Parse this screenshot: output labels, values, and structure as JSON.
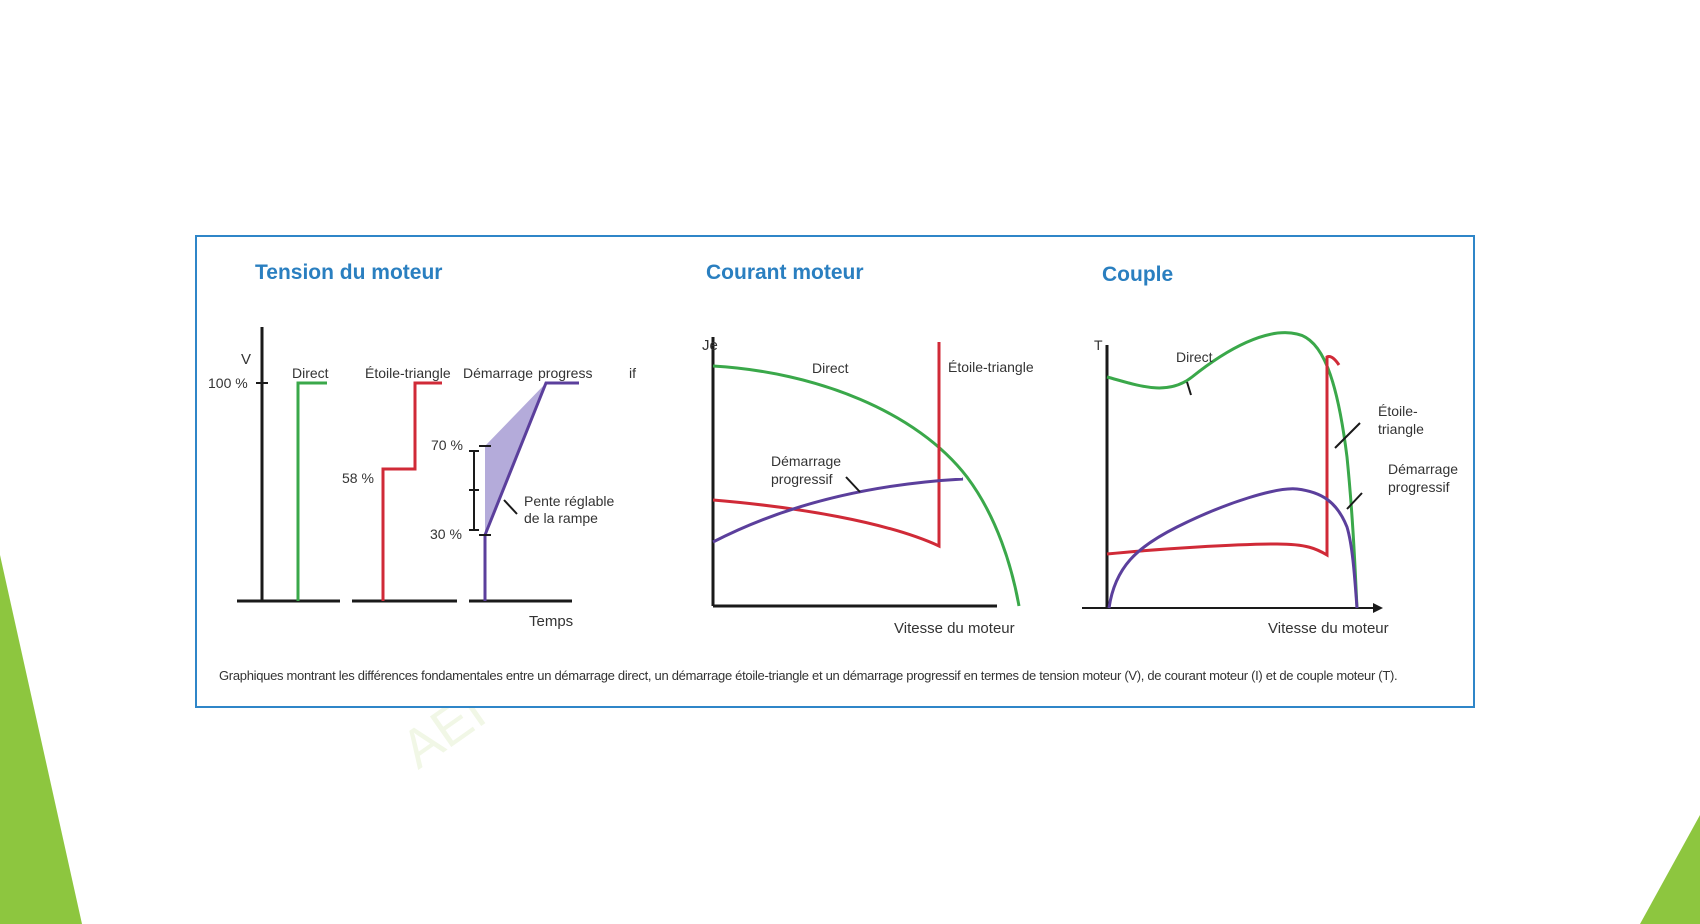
{
  "colors": {
    "border": "#2f86c8",
    "title": "#2a7fc0",
    "direct": "#3aa84a",
    "star_delta": "#d02a37",
    "soft_start": "#5b3f9c",
    "ramp_fill": "#a79cd3",
    "accent_green": "#8dc63f"
  },
  "watermark": "AEI",
  "panels": {
    "voltage": {
      "title": "Tension du moteur",
      "y_axis_label": "V",
      "ticks": {
        "p100": "100 %",
        "p58": "58 %",
        "p70": "70 %",
        "p30": "30 %"
      },
      "curve_labels": {
        "direct": "Direct",
        "star_delta": "Étoile-triangle",
        "soft_start_a": "Démarrage",
        "soft_start_b": "progress",
        "soft_start_c": "if"
      },
      "annotation_line1": "Pente réglable",
      "annotation_line2": "de la rampe",
      "x_axis_label": "Temps"
    },
    "current": {
      "title": "Courant moteur",
      "y_axis_label": "Je",
      "curve_labels": {
        "direct": "Direct",
        "star_delta": "Étoile-triangle",
        "soft_start_line1": "Démarrage",
        "soft_start_line2": "progressif"
      },
      "x_axis_label": "Vitesse du moteur"
    },
    "torque": {
      "title": "Couple",
      "y_axis_label": "T",
      "curve_labels": {
        "direct": "Direct",
        "star_delta_line1": "Étoile-",
        "star_delta_line2": "triangle",
        "soft_start_line1": "Démarrage",
        "soft_start_line2": "progressif"
      },
      "x_axis_label": "Vitesse du moteur"
    }
  },
  "caption": "Graphiques montrant les différences fondamentales entre un démarrage direct, un démarrage étoile-triangle et un démarrage progressif en termes de tension moteur (V), de courant moteur (I) et de couple moteur (T)."
}
